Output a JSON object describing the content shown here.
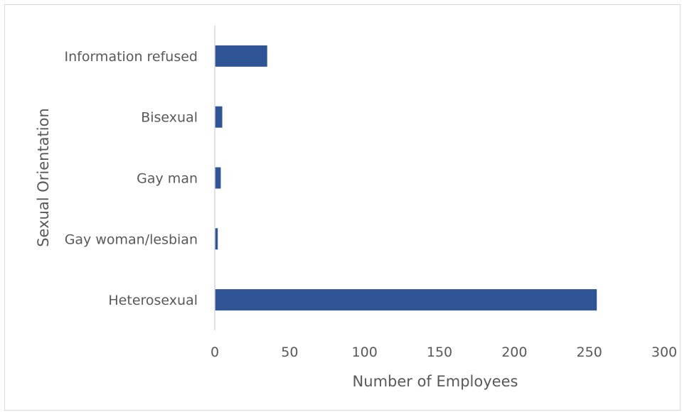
{
  "chart_data": {
    "type": "bar",
    "orientation": "horizontal",
    "categories": [
      "Information refused",
      "Bisexual",
      "Gay man",
      "Gay woman/lesbian",
      "Heterosexual"
    ],
    "values": [
      35,
      5,
      4,
      2,
      255
    ],
    "xlabel": "Number of Employees",
    "ylabel": "Sexual Orientation",
    "xlim": [
      0,
      300
    ],
    "xticks": [
      0,
      50,
      100,
      150,
      200,
      250,
      300
    ],
    "grid": false,
    "legend": "none",
    "bar_color": "#2F5597",
    "axis_color": "#d9d9d9",
    "text_color": "#595959"
  }
}
